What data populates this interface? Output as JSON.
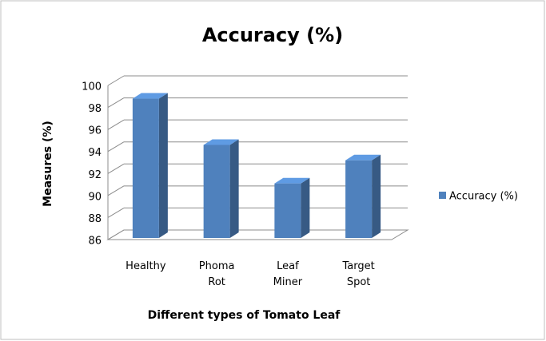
{
  "chart_data": {
    "type": "bar3d",
    "title": "Accuracy (%)",
    "x_label": "Different types of Tomato Leaf",
    "y_label": "Measures (%)",
    "categories": [
      "Healthy",
      "Phoma Rot",
      "Leaf Miner",
      "Target Spot"
    ],
    "series": [
      {
        "name": "Accuracy (%)",
        "color": "#4f81bd",
        "values": [
          98.8,
          94.6,
          91.1,
          93.2
        ]
      }
    ],
    "ylim": [
      86,
      100
    ],
    "yticks": [
      86,
      88,
      90,
      92,
      94,
      96,
      98,
      100
    ],
    "grid": true,
    "legend": "right"
  }
}
